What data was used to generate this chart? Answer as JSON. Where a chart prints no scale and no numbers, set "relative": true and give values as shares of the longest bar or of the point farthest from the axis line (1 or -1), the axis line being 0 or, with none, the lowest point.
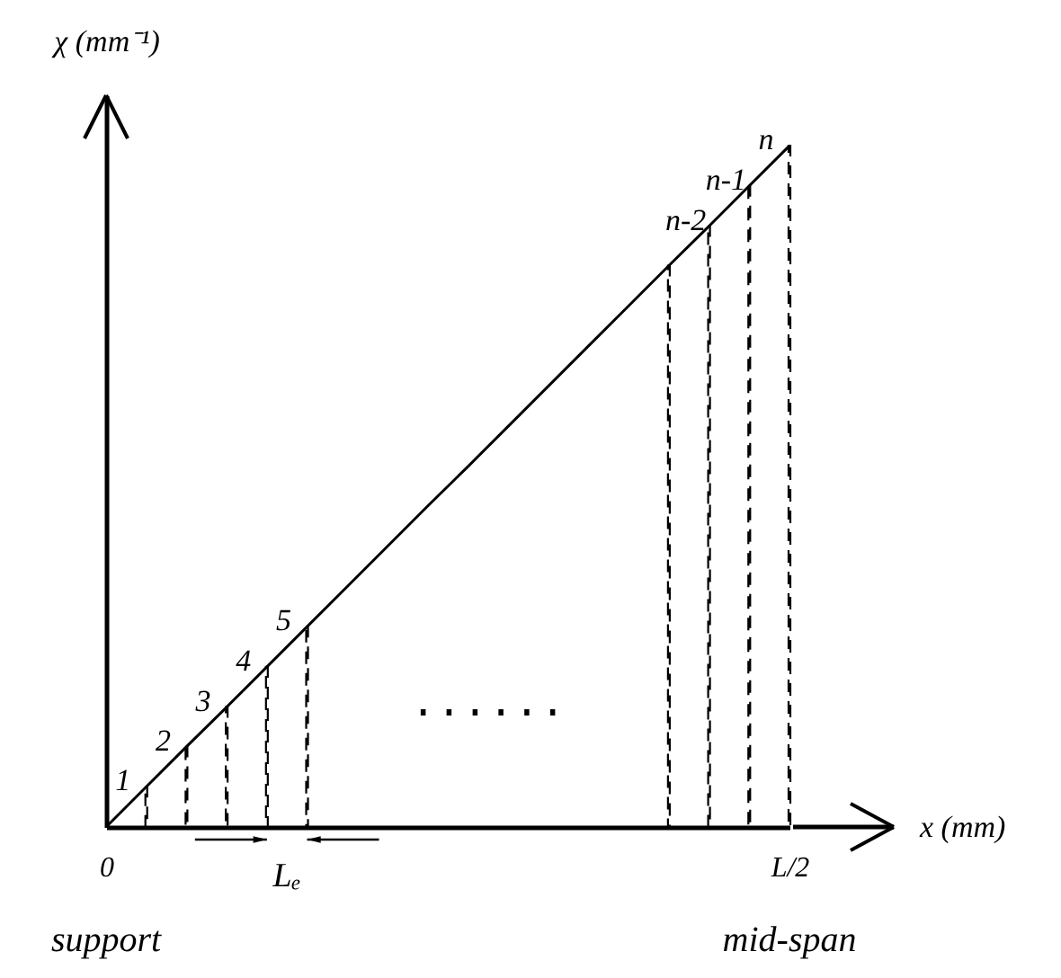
{
  "chart_data": {
    "type": "line",
    "relative": true,
    "xlabel": "x (mm)",
    "ylabel": "χ (mm⁻¹)",
    "categories": [
      "0",
      null,
      null,
      null,
      null,
      null,
      null,
      null,
      null,
      null,
      null,
      null,
      null,
      null,
      null,
      null,
      null,
      "L/2"
    ],
    "series": [
      {
        "color": "#000000",
        "line_style": "solid",
        "values": [
          0,
          0.059,
          0.118,
          0.176,
          0.235,
          0.294,
          0.353,
          0.412,
          0.471,
          0.529,
          0.588,
          0.647,
          0.706,
          0.765,
          0.824,
          0.882,
          0.941,
          1
        ]
      },
      {
        "type": "bar",
        "color": "#000000",
        "line_style": "dashed",
        "values": [
          null,
          0.059,
          0.118,
          0.176,
          0.235,
          0.294,
          null,
          null,
          null,
          null,
          null,
          null,
          null,
          null,
          0.824,
          0.882,
          0.941,
          1
        ]
      }
    ],
    "annotations": [
      "1",
      "2",
      "3",
      "4",
      "5",
      "n-2",
      "n-1",
      "n",
      "......",
      "Lₑ",
      "support",
      "mid-span"
    ]
  }
}
